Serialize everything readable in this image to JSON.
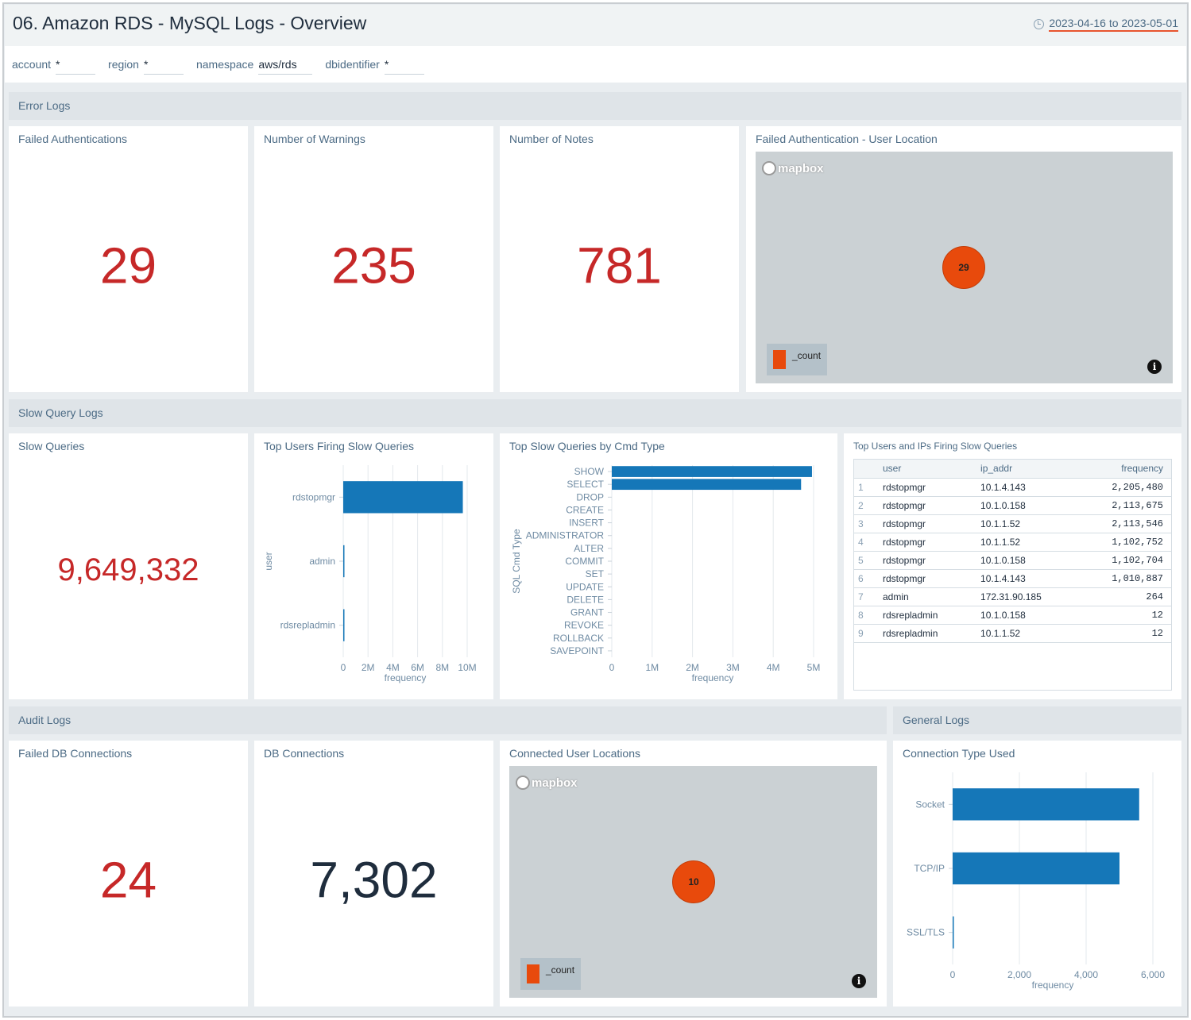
{
  "title": "06. Amazon RDS - MySQL Logs - Overview",
  "date_range": "2023-04-16 to 2023-05-01",
  "filters": [
    {
      "label": "account",
      "value": "*"
    },
    {
      "label": "region",
      "value": "*"
    },
    {
      "label": "namespace",
      "value": "aws/rds"
    },
    {
      "label": "dbidentifier",
      "value": "*"
    }
  ],
  "sections": {
    "error": "Error Logs",
    "slow": "Slow Query Logs",
    "audit": "Audit Logs",
    "general": "General Logs"
  },
  "panels": {
    "failed_auth": {
      "title": "Failed Authentications",
      "value": "29"
    },
    "warnings": {
      "title": "Number of Warnings",
      "value": "235"
    },
    "notes": {
      "title": "Number of Notes",
      "value": "781"
    },
    "auth_location": {
      "title": "Failed Authentication - User Location",
      "brand": "mapbox",
      "bubble": "29",
      "legend": "_count"
    },
    "slow_queries": {
      "title": "Slow Queries",
      "value": "9,649,332"
    },
    "top_users": {
      "title": "Top Users Firing Slow Queries"
    },
    "top_cmd": {
      "title": "Top Slow Queries by Cmd Type"
    },
    "top_users_ips": {
      "title": "Top Users and IPs Firing Slow Queries",
      "columns": [
        "user",
        "ip_addr",
        "frequency"
      ],
      "rows": [
        [
          "1",
          "rdstopmgr",
          "10.1.4.143",
          "2,205,480"
        ],
        [
          "2",
          "rdstopmgr",
          "10.1.0.158",
          "2,113,675"
        ],
        [
          "3",
          "rdstopmgr",
          "10.1.1.52",
          "2,113,546"
        ],
        [
          "4",
          "rdstopmgr",
          "10.1.1.52",
          "1,102,752"
        ],
        [
          "5",
          "rdstopmgr",
          "10.1.0.158",
          "1,102,704"
        ],
        [
          "6",
          "rdstopmgr",
          "10.1.4.143",
          "1,010,887"
        ],
        [
          "7",
          "admin",
          "172.31.90.185",
          "264"
        ],
        [
          "8",
          "rdsrepladmin",
          "10.1.0.158",
          "12"
        ],
        [
          "9",
          "rdsrepladmin",
          "10.1.1.52",
          "12"
        ]
      ]
    },
    "failed_db": {
      "title": "Failed DB Connections",
      "value": "24"
    },
    "db_conn": {
      "title": "DB Connections",
      "value": "7,302"
    },
    "conn_location": {
      "title": "Connected User Locations",
      "brand": "mapbox",
      "bubble": "10",
      "legend": "_count"
    },
    "conn_type": {
      "title": "Connection Type Used"
    }
  },
  "colors": {
    "accent": "#1577b8",
    "number_red": "#c62828",
    "bubble": "#e84a0c"
  },
  "chart_data": [
    {
      "id": "top_users",
      "type": "bar",
      "orientation": "horizontal",
      "categories": [
        "rdstopmgr",
        "admin",
        "rdsrepladmin"
      ],
      "values": [
        9649000,
        264,
        24
      ],
      "xlabel": "frequency",
      "ylabel": "user",
      "xlim": [
        0,
        10000000
      ],
      "ticks": [
        0,
        2000000,
        4000000,
        6000000,
        8000000,
        10000000
      ],
      "tick_labels": [
        "0",
        "2M",
        "4M",
        "6M",
        "8M",
        "10M"
      ]
    },
    {
      "id": "top_cmd",
      "type": "bar",
      "orientation": "horizontal",
      "categories": [
        "SHOW",
        "SELECT",
        "DROP",
        "CREATE",
        "INSERT",
        "ADMINISTRATOR",
        "ALTER",
        "COMMIT",
        "SET",
        "UPDATE",
        "DELETE",
        "GRANT",
        "REVOKE",
        "ROLLBACK",
        "SAVEPOINT"
      ],
      "values": [
        4960000,
        4690000,
        0,
        0,
        0,
        0,
        0,
        0,
        0,
        0,
        0,
        0,
        0,
        0,
        0
      ],
      "xlabel": "frequency",
      "ylabel": "SQL Cmd Type",
      "xlim": [
        0,
        5000000
      ],
      "ticks": [
        0,
        1000000,
        2000000,
        3000000,
        4000000,
        5000000
      ],
      "tick_labels": [
        "0",
        "1M",
        "2M",
        "3M",
        "4M",
        "5M"
      ]
    },
    {
      "id": "conn_type",
      "type": "bar",
      "orientation": "horizontal",
      "categories": [
        "Socket",
        "TCP/IP",
        "SSL/TLS"
      ],
      "values": [
        5590,
        5000,
        30
      ],
      "xlabel": "frequency",
      "ylabel": "",
      "xlim": [
        0,
        6000
      ],
      "ticks": [
        0,
        2000,
        4000,
        6000
      ],
      "tick_labels": [
        "0",
        "2,000",
        "4,000",
        "6,000"
      ]
    }
  ]
}
